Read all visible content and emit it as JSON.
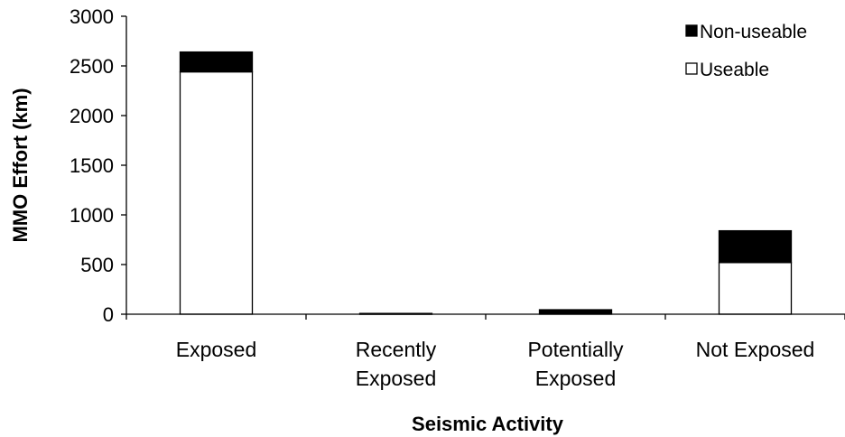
{
  "chart_data": {
    "type": "bar",
    "stacked": true,
    "categories": [
      [
        "Exposed"
      ],
      [
        "Recently",
        "Exposed"
      ],
      [
        "Potentially",
        "Exposed"
      ],
      [
        "Not Exposed"
      ]
    ],
    "series": [
      {
        "name": "Useable",
        "values": [
          2440,
          0,
          0,
          520
        ],
        "color": "#ffffff"
      },
      {
        "name": "Non-useable",
        "values": [
          200,
          8,
          45,
          320
        ],
        "color": "#000000"
      }
    ],
    "xlabel": "Seismic Activity",
    "ylabel": "MMO Effort (km)",
    "ylim": [
      0,
      3000
    ],
    "yticks": [
      0,
      500,
      1000,
      1500,
      2000,
      2500,
      3000
    ],
    "grid": false,
    "legend": {
      "placement": "top-right",
      "order": [
        "Non-useable",
        "Useable"
      ]
    }
  }
}
